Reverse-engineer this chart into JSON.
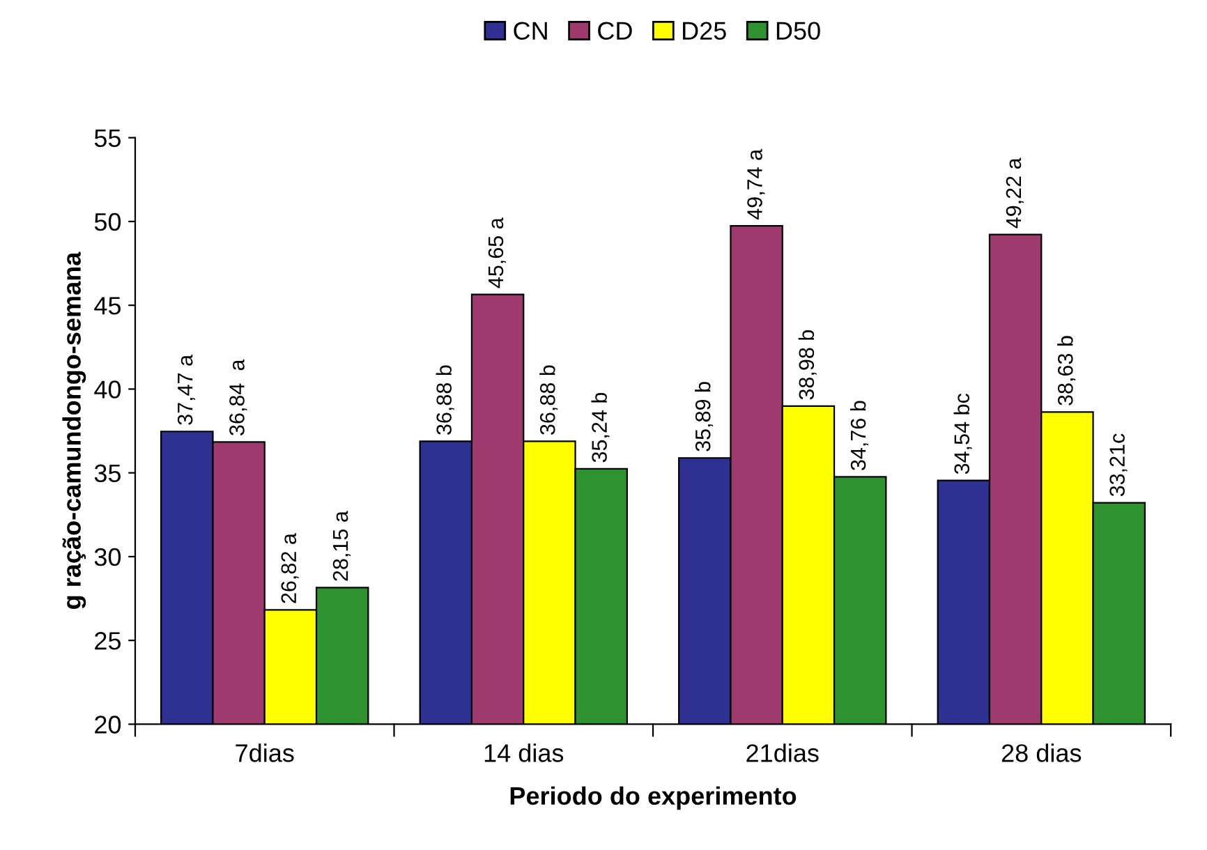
{
  "chart_data": {
    "type": "bar",
    "xlabel": "Periodo do experimento",
    "ylabel": "g ração-camundongo-semana",
    "categories": [
      "7dias",
      "14 dias",
      "21dias",
      "28 dias"
    ],
    "series": [
      {
        "name": "CN",
        "color": "#2e3192",
        "values": [
          37.47,
          36.88,
          35.89,
          34.54
        ],
        "value_labels": [
          "37,47 a",
          "36,88 b",
          "35,89 b",
          "34,54 bc"
        ]
      },
      {
        "name": "CD",
        "color": "#9e3a6e",
        "values": [
          36.84,
          45.65,
          49.74,
          49.22
        ],
        "value_labels": [
          "36,84  a",
          "45,65 a",
          "49,74 a",
          "49,22 a"
        ]
      },
      {
        "name": "D25",
        "color": "#ffff00",
        "values": [
          26.82,
          36.88,
          38.98,
          38.63
        ],
        "value_labels": [
          "26,82 a",
          "36,88 b",
          "38,98 b",
          "38,63 b"
        ]
      },
      {
        "name": "D50",
        "color": "#2e922e",
        "values": [
          28.15,
          35.24,
          34.76,
          33.21
        ],
        "value_labels": [
          "28,15 a",
          "35,24 b",
          "34,76 b",
          "33,21c"
        ]
      }
    ],
    "ylim": [
      20,
      55
    ],
    "yticks": [
      20,
      25,
      30,
      35,
      40,
      45,
      50,
      55
    ],
    "grid": false,
    "legend": "top"
  }
}
